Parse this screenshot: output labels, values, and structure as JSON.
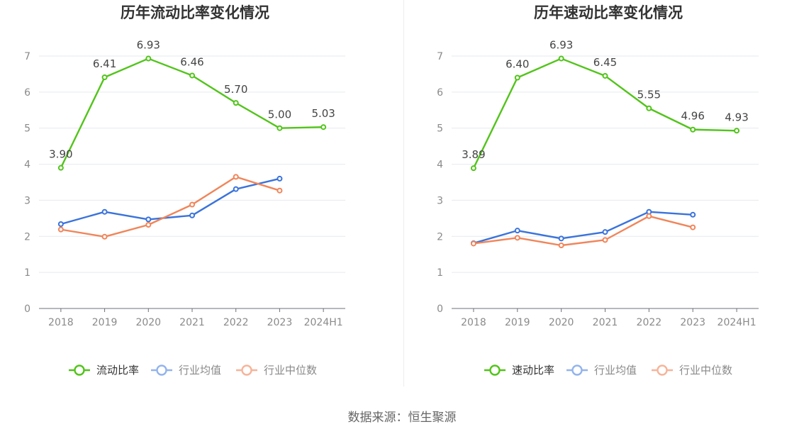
{
  "source_text": "数据来源：恒生聚源",
  "chart_data": [
    {
      "type": "line",
      "title": "历年流动比率变化情况",
      "categories": [
        "2018",
        "2019",
        "2020",
        "2021",
        "2022",
        "2023",
        "2024H1"
      ],
      "ylim": [
        0,
        7
      ],
      "yticks": [
        0,
        1,
        2,
        3,
        4,
        5,
        6,
        7
      ],
      "grid": true,
      "legend_position": "bottom",
      "series": [
        {
          "name": "流动比率",
          "color": "#52c41a",
          "values": [
            3.9,
            6.41,
            6.93,
            6.46,
            5.7,
            5.0,
            5.03
          ],
          "labels": [
            "3.90",
            "6.41",
            "6.93",
            "6.46",
            "5.70",
            "5.00",
            "5.03"
          ]
        },
        {
          "name": "行业均值",
          "color": "#3a73db",
          "values": [
            2.34,
            2.68,
            2.47,
            2.58,
            3.31,
            3.6,
            null
          ]
        },
        {
          "name": "行业中位数",
          "color": "#f0855a",
          "values": [
            2.19,
            1.99,
            2.32,
            2.88,
            3.65,
            3.27,
            null
          ]
        }
      ]
    },
    {
      "type": "line",
      "title": "历年速动比率变化情况",
      "categories": [
        "2018",
        "2019",
        "2020",
        "2021",
        "2022",
        "2023",
        "2024H1"
      ],
      "ylim": [
        0,
        7
      ],
      "yticks": [
        0,
        1,
        2,
        3,
        4,
        5,
        6,
        7
      ],
      "grid": true,
      "legend_position": "bottom",
      "series": [
        {
          "name": "速动比率",
          "color": "#52c41a",
          "values": [
            3.89,
            6.4,
            6.93,
            6.45,
            5.55,
            4.96,
            4.93
          ],
          "labels": [
            "3.89",
            "6.40",
            "6.93",
            "6.45",
            "5.55",
            "4.96",
            "4.93"
          ]
        },
        {
          "name": "行业均值",
          "color": "#3a73db",
          "values": [
            1.81,
            2.16,
            1.94,
            2.12,
            2.68,
            2.6,
            null
          ]
        },
        {
          "name": "行业中位数",
          "color": "#f0855a",
          "values": [
            1.8,
            1.96,
            1.75,
            1.9,
            2.56,
            2.25,
            null
          ]
        }
      ]
    }
  ]
}
